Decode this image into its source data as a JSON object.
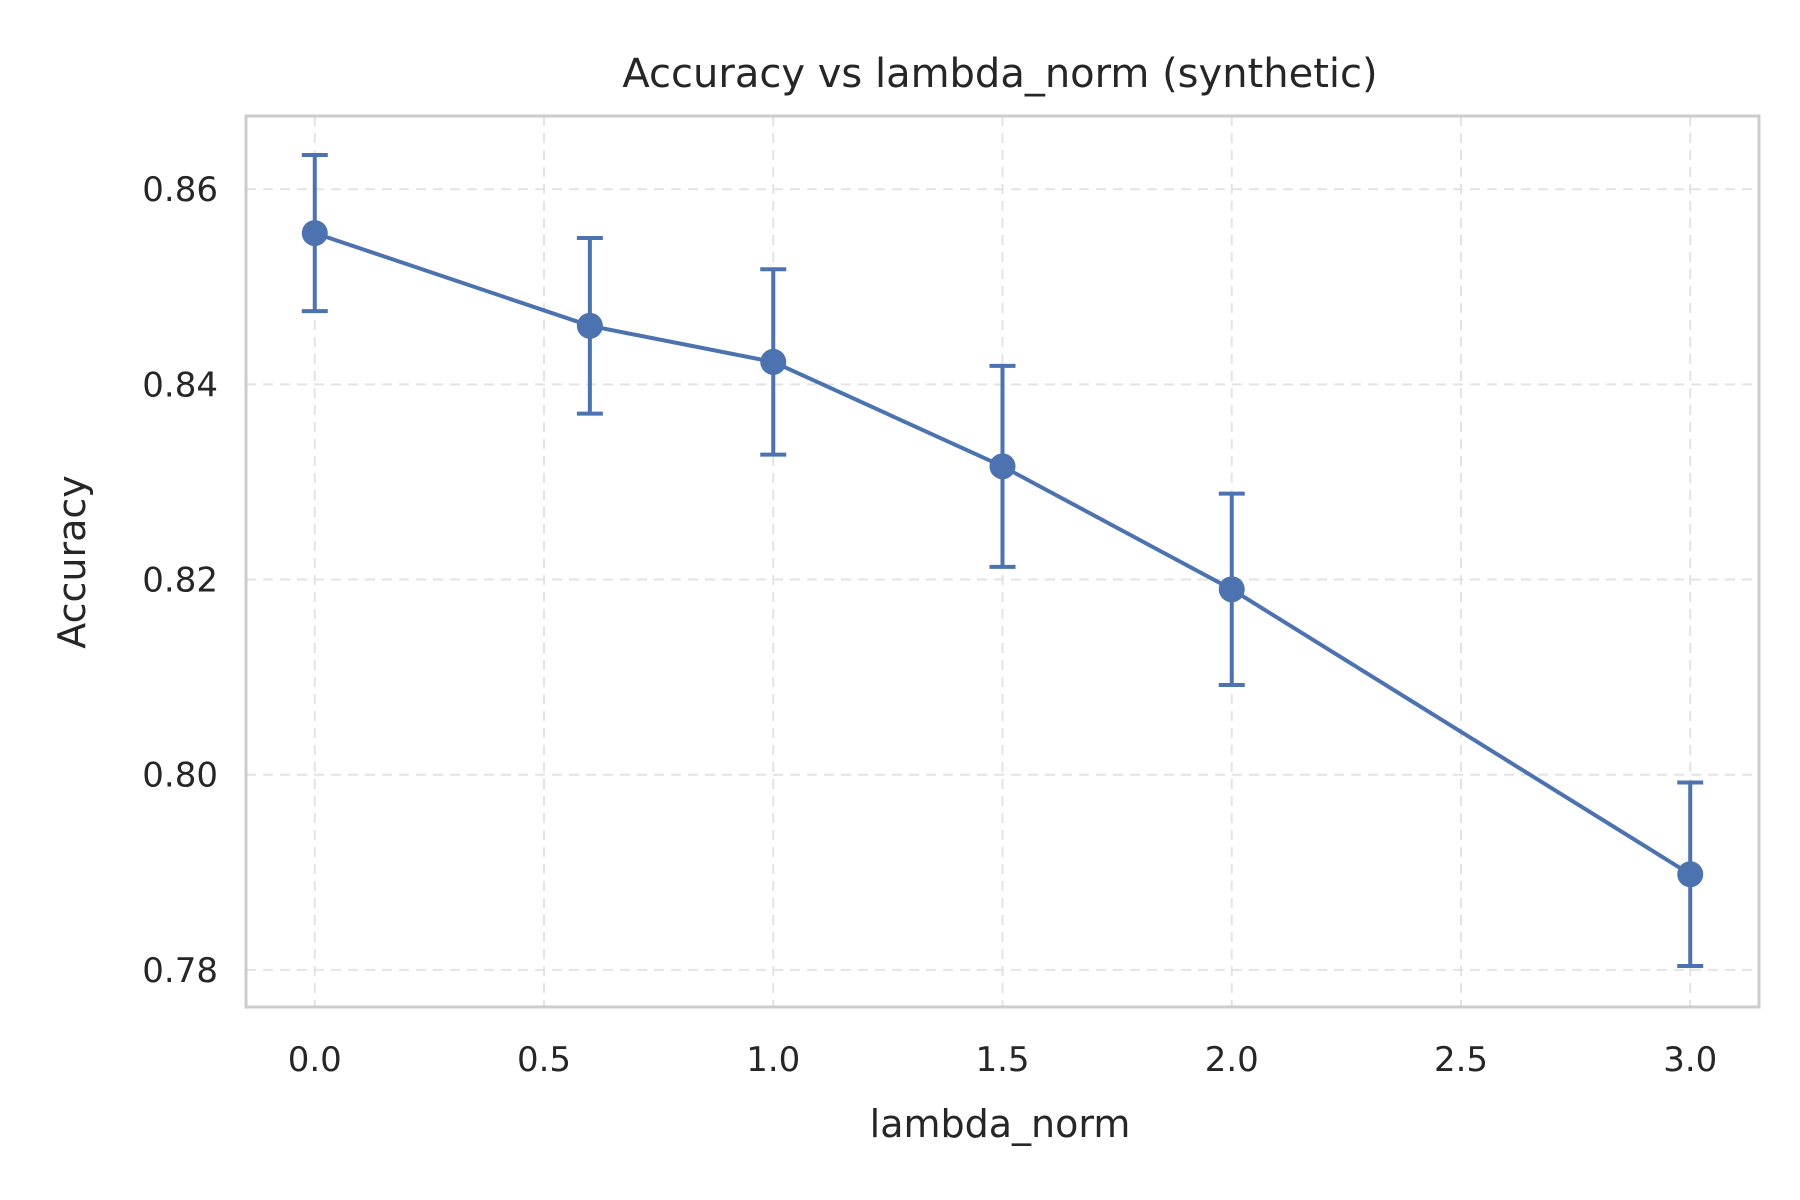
{
  "chart_data": {
    "type": "line",
    "title": "Accuracy vs lambda_norm (synthetic)",
    "xlabel": "lambda_norm",
    "ylabel": "Accuracy",
    "xlim": [
      -0.15,
      3.15
    ],
    "ylim": [
      0.7762,
      0.8675
    ],
    "xticks": [
      0.0,
      0.5,
      1.0,
      1.5,
      2.0,
      2.5,
      3.0
    ],
    "xtick_labels": [
      "0.0",
      "0.5",
      "1.0",
      "1.5",
      "2.0",
      "2.5",
      "3.0"
    ],
    "yticks": [
      0.78,
      0.8,
      0.82,
      0.84,
      0.86
    ],
    "ytick_labels": [
      "0.78",
      "0.80",
      "0.82",
      "0.84",
      "0.86"
    ],
    "grid": true,
    "series": [
      {
        "color": "#4c72b0",
        "points": [
          {
            "x": 0.0,
            "y": 0.8555,
            "yerr": 0.008
          },
          {
            "x": 0.6,
            "y": 0.846,
            "yerr": 0.009
          },
          {
            "x": 1.0,
            "y": 0.8423,
            "yerr": 0.0095
          },
          {
            "x": 1.5,
            "y": 0.8316,
            "yerr": 0.0103
          },
          {
            "x": 2.0,
            "y": 0.819,
            "yerr": 0.0098
          },
          {
            "x": 3.0,
            "y": 0.7898,
            "yerr": 0.0094
          }
        ]
      }
    ]
  }
}
